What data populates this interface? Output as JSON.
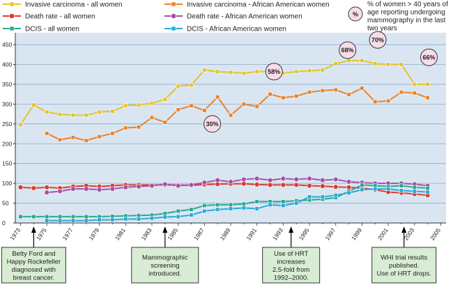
{
  "chart_data": {
    "type": "line",
    "title": "",
    "xlabel": "",
    "ylabel": "",
    "xlim": [
      1972.6,
      2005.4
    ],
    "ylim": [
      0,
      480
    ],
    "grid": true,
    "x_ticks": [
      1973,
      1975,
      1977,
      1979,
      1981,
      1983,
      1985,
      1987,
      1989,
      1991,
      1993,
      1995,
      1997,
      1999,
      2001,
      2003,
      2005
    ],
    "y_ticks": [
      0,
      50,
      100,
      150,
      200,
      250,
      300,
      350,
      400,
      450
    ],
    "colors": {
      "plot_background": "#d9e6f2",
      "gridline": "#8fa9c5",
      "callout_box": "#d8edd4",
      "pct_bubble": "#f8dde9"
    },
    "series": [
      {
        "name": "Invasive carcinoma - all women",
        "color": "#e6c32a",
        "marker": "square",
        "x": [
          1973,
          1974,
          1975,
          1976,
          1977,
          1978,
          1979,
          1980,
          1981,
          1982,
          1983,
          1984,
          1985,
          1986,
          1987,
          1988,
          1989,
          1990,
          1991,
          1992,
          1993,
          1994,
          1995,
          1996,
          1997,
          1998,
          1999,
          2000,
          2001,
          2002,
          2003,
          2004
        ],
        "values": [
          248,
          298,
          280,
          274,
          272,
          272,
          280,
          282,
          296,
          298,
          302,
          312,
          345,
          348,
          386,
          382,
          380,
          378,
          382,
          382,
          378,
          382,
          384,
          386,
          402,
          410,
          410,
          402,
          400,
          400,
          350,
          350
        ]
      },
      {
        "name": "Invasive carcinoma - African American women",
        "color": "#e8832a",
        "marker": "square",
        "x": [
          1975,
          1976,
          1977,
          1978,
          1979,
          1980,
          1981,
          1982,
          1983,
          1984,
          1985,
          1986,
          1987,
          1988,
          1989,
          1990,
          1991,
          1992,
          1993,
          1994,
          1995,
          1996,
          1997,
          1998,
          1999,
          2000,
          2001,
          2002,
          2003,
          2004
        ],
        "values": [
          226,
          210,
          216,
          208,
          218,
          226,
          240,
          242,
          266,
          254,
          286,
          296,
          284,
          318,
          272,
          300,
          294,
          325,
          316,
          320,
          330,
          334,
          336,
          324,
          340,
          306,
          308,
          330,
          328,
          316
        ]
      },
      {
        "name": "Death rate - all women",
        "color": "#d93c2b",
        "marker": "circle",
        "x": [
          1973,
          1974,
          1975,
          1976,
          1977,
          1978,
          1979,
          1980,
          1981,
          1982,
          1983,
          1984,
          1985,
          1986,
          1987,
          1988,
          1989,
          1990,
          1991,
          1992,
          1993,
          1994,
          1995,
          1996,
          1997,
          1998,
          1999,
          2000,
          2001,
          2002,
          2003,
          2004
        ],
        "values": [
          90,
          88,
          90,
          88,
          92,
          94,
          92,
          94,
          96,
          96,
          96,
          96,
          96,
          95,
          97,
          98,
          99,
          99,
          97,
          96,
          96,
          96,
          94,
          93,
          91,
          90,
          88,
          84,
          78,
          76,
          73,
          70
        ]
      },
      {
        "name": "Death rate - African American women",
        "color": "#a650a8",
        "marker": "circle",
        "x": [
          1975,
          1976,
          1977,
          1978,
          1979,
          1980,
          1981,
          1982,
          1983,
          1984,
          1985,
          1986,
          1987,
          1988,
          1989,
          1990,
          1991,
          1992,
          1993,
          1994,
          1995,
          1996,
          1997,
          1998,
          1999,
          2000,
          2001,
          2002,
          2003,
          2004
        ],
        "values": [
          77,
          80,
          86,
          86,
          84,
          86,
          90,
          92,
          94,
          98,
          94,
          96,
          102,
          108,
          104,
          110,
          112,
          108,
          112,
          110,
          112,
          108,
          110,
          104,
          102,
          100,
          100,
          100,
          98,
          94
        ]
      },
      {
        "name": "DCIS - all women",
        "color": "#27a88f",
        "marker": "square",
        "x": [
          1973,
          1974,
          1975,
          1976,
          1977,
          1978,
          1979,
          1980,
          1981,
          1982,
          1983,
          1984,
          1985,
          1986,
          1987,
          1988,
          1989,
          1990,
          1991,
          1992,
          1993,
          1994,
          1995,
          1996,
          1997,
          1998,
          1999,
          2000,
          2001,
          2002,
          2003,
          2004
        ],
        "values": [
          16,
          16,
          16,
          16,
          16,
          16,
          16,
          17,
          18,
          19,
          20,
          24,
          30,
          34,
          44,
          46,
          46,
          48,
          54,
          54,
          54,
          56,
          58,
          60,
          64,
          80,
          96,
          94,
          92,
          94,
          90,
          88
        ]
      },
      {
        "name": "DCIS - African American women",
        "color": "#28a9dc",
        "marker": "square",
        "x": [
          1975,
          1976,
          1977,
          1978,
          1979,
          1980,
          1981,
          1982,
          1983,
          1984,
          1985,
          1986,
          1987,
          1988,
          1989,
          1990,
          1991,
          1992,
          1993,
          1994,
          1995,
          1996,
          1997,
          1998,
          1999,
          2000,
          2001,
          2002,
          2003,
          2004
        ],
        "values": [
          6,
          6,
          6,
          6,
          8,
          8,
          10,
          10,
          12,
          15,
          16,
          20,
          30,
          34,
          36,
          38,
          36,
          46,
          44,
          50,
          66,
          66,
          70,
          76,
          84,
          86,
          86,
          82,
          80,
          78
        ]
      }
    ],
    "mammography_legend": {
      "symbol": "%",
      "text": [
        "% of women > 40 years of",
        "age reporting undergoing",
        "mammography in the last",
        "two years"
      ]
    },
    "mammography_bubbles": [
      {
        "label": "30%",
        "x": 1987.6,
        "y": 250
      },
      {
        "label": "58%",
        "x": 1992.3,
        "y": 382
      },
      {
        "label": "68%",
        "x": 1997.9,
        "y": 436
      },
      {
        "label": "70%",
        "x": 2000.2,
        "y": 462
      },
      {
        "label": "66%",
        "x": 2004.1,
        "y": 418
      }
    ],
    "annotations": [
      {
        "year": 1974,
        "lines": [
          "Betty Ford and",
          "Happy Rockefeller",
          "diagnosed with",
          "breast cancer."
        ]
      },
      {
        "year": 1984,
        "lines": [
          "Mammographic",
          "screening",
          "introduced."
        ]
      },
      {
        "year": 1993.6,
        "lines": [
          "Use of HRT",
          "increases",
          "2.5-fold from",
          "1992–2000."
        ]
      },
      {
        "year": 2002.2,
        "lines": [
          "WHI trial results",
          "published.",
          "Use of HRT drops."
        ]
      }
    ]
  }
}
